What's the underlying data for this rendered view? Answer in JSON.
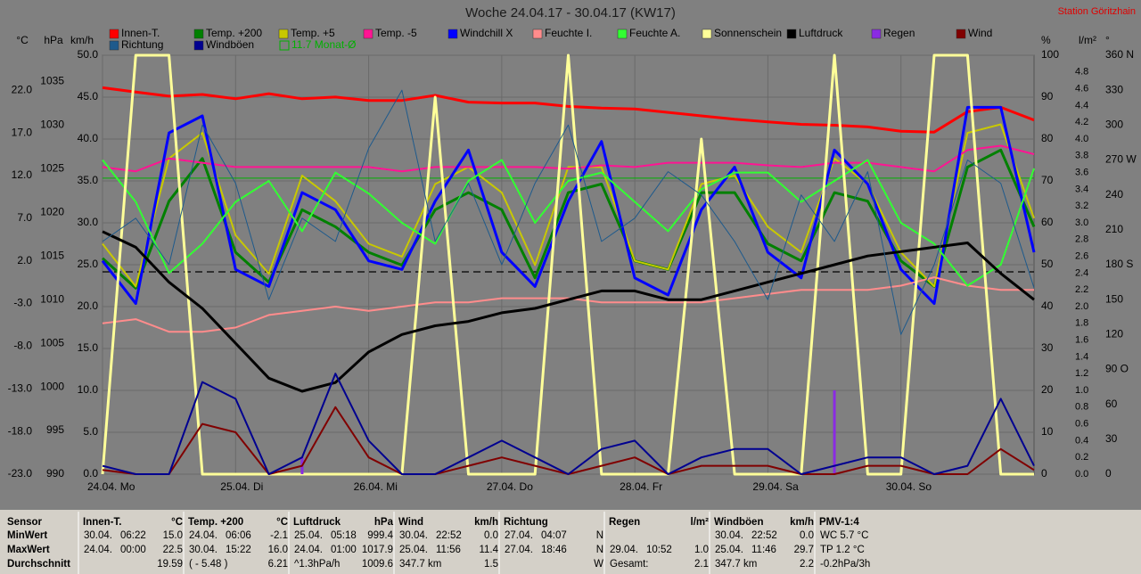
{
  "chart_data": {
    "type": "line",
    "title": "Woche 24.04.17 - 30.04.17 (KW17)",
    "station": "Station Göritzhain",
    "xlim": [
      0,
      168
    ],
    "xticks": [
      {
        "value": 0,
        "label": "24.04. Mo"
      },
      {
        "value": 24,
        "label": "25.04. Di"
      },
      {
        "value": 48,
        "label": "26.04. Mi"
      },
      {
        "value": 72,
        "label": "27.04. Do"
      },
      {
        "value": 96,
        "label": "28.04. Fr"
      },
      {
        "value": 120,
        "label": "29.04. Sa"
      },
      {
        "value": 144,
        "label": "30.04. So"
      }
    ],
    "x": [
      0,
      6,
      12,
      18,
      24,
      30,
      36,
      42,
      48,
      54,
      60,
      66,
      72,
      78,
      84,
      90,
      96,
      102,
      108,
      114,
      120,
      126,
      132,
      138,
      144,
      150,
      156,
      162,
      168
    ],
    "grid": true,
    "monthly_avg": 11.7,
    "monthly_avg_label": "11.7 Monat-Ø",
    "monthly_avg_color": "#00b000",
    "axes": {
      "c": {
        "label": "°C",
        "lim": [
          -23,
          26.1
        ],
        "ticks": [
          {
            "value": -23,
            "label": "-23.0"
          },
          {
            "value": -18,
            "label": "-18.0"
          },
          {
            "value": -13,
            "label": "-13.0"
          },
          {
            "value": -8,
            "label": "-8.0"
          },
          {
            "value": -3,
            "label": "-3.0"
          },
          {
            "value": 2,
            "label": "2.0"
          },
          {
            "value": 7,
            "label": "7.0"
          },
          {
            "value": 12,
            "label": "12.0"
          },
          {
            "value": 17,
            "label": "17.0"
          },
          {
            "value": 22,
            "label": "22.0"
          }
        ]
      },
      "hpa": {
        "label": "hPa",
        "lim": [
          990,
          1038
        ],
        "ticks": [
          990,
          995,
          1000,
          1005,
          1010,
          1015,
          1020,
          1025,
          1030,
          1035
        ]
      },
      "kmh": {
        "label": "km/h",
        "lim": [
          0,
          50
        ],
        "ticks": [
          {
            "value": 0,
            "label": "0.0"
          },
          {
            "value": 5,
            "label": "5.0"
          },
          {
            "value": 10,
            "label": "10.0"
          },
          {
            "value": 15,
            "label": "15.0"
          },
          {
            "value": 20,
            "label": "20.0"
          },
          {
            "value": 25,
            "label": "25.0"
          },
          {
            "value": 30,
            "label": "30.0"
          },
          {
            "value": 35,
            "label": "35.0"
          },
          {
            "value": 40,
            "label": "40.0"
          },
          {
            "value": 45,
            "label": "45.0"
          },
          {
            "value": 50,
            "label": "50.0"
          }
        ]
      },
      "pct": {
        "label": "%",
        "lim": [
          0,
          100
        ],
        "ticks": [
          0,
          10,
          20,
          30,
          40,
          50,
          60,
          70,
          80,
          90,
          100
        ]
      },
      "rain": {
        "label": "l/m²",
        "lim": [
          0,
          5
        ],
        "ticks": [
          {
            "value": 0,
            "label": "0.0"
          },
          0.2,
          0.4,
          0.6,
          0.8,
          {
            "value": 1,
            "label": "1.0"
          },
          1.2,
          1.4,
          1.6,
          1.8,
          {
            "value": 2,
            "label": "2.0"
          },
          2.2,
          2.4,
          2.6,
          2.8,
          {
            "value": 3,
            "label": "3.0"
          },
          3.2,
          3.4,
          3.6,
          3.8,
          {
            "value": 4,
            "label": "4.0"
          },
          4.2,
          4.4,
          4.6,
          4.8
        ]
      },
      "deg": {
        "label": "°",
        "lim": [
          0,
          360
        ],
        "ticks": [
          0,
          30,
          60,
          {
            "value": 90,
            "label": "90 O"
          },
          120,
          150,
          {
            "value": 180,
            "label": "180 S"
          },
          210,
          240,
          {
            "value": 270,
            "label": "270 W"
          },
          300,
          330,
          {
            "value": 360,
            "label": "360 N"
          }
        ]
      }
    },
    "series": [
      {
        "name": "Innen-T.",
        "color": "#ff0000",
        "axis": "c",
        "width": 3,
        "values": [
          22.3,
          21.8,
          21.3,
          21.5,
          21.0,
          21.6,
          21.0,
          21.2,
          20.8,
          20.8,
          21.4,
          20.6,
          20.5,
          20.5,
          20.1,
          19.9,
          19.8,
          19.4,
          19.0,
          18.6,
          18.3,
          18.0,
          17.9,
          17.7,
          17.2,
          17.1,
          19.5,
          20.0,
          18.5
        ]
      },
      {
        "name": "Temp. +200",
        "color": "#008000",
        "axis": "c",
        "width": 3,
        "values": [
          2.3,
          -1.2,
          9,
          14,
          3,
          -0.5,
          8,
          6,
          3,
          1.5,
          8,
          10,
          8,
          0,
          10,
          11,
          2,
          1,
          10,
          10,
          4,
          2,
          10,
          9,
          2,
          -1,
          13,
          15,
          6
        ]
      },
      {
        "name": "Temp. +5",
        "color": "#c8c800",
        "axis": "c",
        "width": 2,
        "values": [
          4,
          -1,
          14,
          17,
          5,
          0.5,
          12,
          9,
          4,
          2.5,
          11,
          13,
          10,
          1.5,
          13,
          13,
          2,
          1,
          11,
          12,
          6,
          3,
          14,
          11,
          3,
          -1,
          17,
          18,
          7
        ]
      },
      {
        "name": "Temp. -5",
        "color": "#ff1493",
        "axis": "c",
        "width": 2,
        "values": [
          13,
          12.5,
          14,
          13.5,
          13,
          13,
          13,
          13,
          13,
          12.5,
          13,
          13,
          13,
          13,
          12.8,
          13.2,
          13,
          13.5,
          13.5,
          13.5,
          13.2,
          13,
          13.5,
          13.5,
          13,
          12.5,
          15,
          15.5,
          14.5
        ]
      },
      {
        "name": "Windchill X",
        "color": "#0000ff",
        "axis": "c",
        "width": 3,
        "values": [
          2,
          -3,
          17,
          19,
          1,
          -1,
          10,
          8,
          2,
          1,
          9,
          15,
          3,
          -1,
          9,
          16,
          0,
          -2,
          8,
          13,
          3,
          0,
          15,
          11,
          1,
          -3,
          20,
          20,
          3
        ]
      },
      {
        "name": "Feuchte I.",
        "color": "#ff8c8c",
        "axis": "pct",
        "width": 2,
        "values": [
          36,
          37,
          34,
          34,
          35,
          38,
          39,
          40,
          39,
          40,
          41,
          41,
          42,
          42,
          42,
          41,
          41,
          41,
          41,
          42,
          43,
          44,
          44,
          44,
          45,
          47,
          45,
          44,
          44
        ]
      },
      {
        "name": "Feuchte A.",
        "color": "#32ff32",
        "axis": "pct",
        "width": 2,
        "values": [
          75,
          65,
          48,
          55,
          65,
          70,
          58,
          72,
          67,
          60,
          55,
          70,
          75,
          60,
          70,
          72,
          65,
          58,
          68,
          72,
          72,
          65,
          70,
          75,
          60,
          55,
          45,
          50,
          73
        ]
      },
      {
        "name": "Sonnenschein",
        "color": "#ffff99",
        "axis": "pct",
        "width": 3,
        "values": [
          0,
          100,
          100,
          0,
          0,
          0,
          0,
          0,
          0,
          0,
          90,
          0,
          0,
          0,
          100,
          0,
          0,
          0,
          80,
          0,
          0,
          0,
          100,
          0,
          0,
          100,
          100,
          0,
          0
        ]
      },
      {
        "name": "Luftdruck",
        "color": "#000000",
        "axis": "hpa",
        "width": 3,
        "values": [
          1017.8,
          1016,
          1012,
          1009,
          1005,
          1001,
          999.5,
          1000.5,
          1004,
          1006,
          1007,
          1007.5,
          1008.5,
          1009,
          1010,
          1011,
          1011,
          1010,
          1010,
          1011,
          1012,
          1013,
          1014,
          1015,
          1015.5,
          1016,
          1016.5,
          1013,
          1010
        ]
      },
      {
        "name": "Regen",
        "color": "#8a2be2",
        "axis": "rain",
        "style": "bar",
        "values": [
          0,
          0,
          0,
          0,
          0,
          0,
          0.2,
          0,
          0,
          0,
          0,
          0,
          0,
          0,
          0,
          0,
          0,
          0,
          0,
          0,
          0,
          0,
          1.0,
          0,
          0,
          0,
          0,
          0,
          0
        ]
      },
      {
        "name": "Wind",
        "color": "#800000",
        "axis": "kmh",
        "width": 2,
        "values": [
          0.5,
          0,
          0,
          6,
          5,
          0,
          1,
          8,
          2,
          0,
          0,
          1,
          2,
          1,
          0,
          1,
          2,
          0,
          1,
          1,
          1,
          0,
          0,
          1,
          1,
          0,
          0,
          3,
          0.5
        ]
      },
      {
        "name": "Richtung",
        "color": "#1e5a8c",
        "axis": "deg",
        "width": 1,
        "values": [
          200,
          220,
          180,
          300,
          250,
          150,
          220,
          200,
          280,
          330,
          200,
          250,
          180,
          250,
          300,
          200,
          220,
          260,
          240,
          200,
          150,
          240,
          200,
          260,
          120,
          180,
          270,
          250,
          160
        ]
      },
      {
        "name": "Windböen",
        "color": "#000090",
        "axis": "kmh",
        "width": 2,
        "values": [
          1,
          0,
          0,
          11,
          9,
          0,
          2,
          12,
          4,
          0,
          0,
          2,
          4,
          2,
          0,
          3,
          4,
          0,
          2,
          3,
          3,
          0,
          1,
          2,
          2,
          0,
          1,
          9,
          1
        ]
      }
    ]
  },
  "table": {
    "row_labels": [
      "Sensor",
      "MinWert",
      "MaxWert",
      "Durchschnitt"
    ],
    "groups": [
      {
        "name": "Innen-T.",
        "unit": "°C",
        "min": {
          "date": "30.04.",
          "time": "06:22",
          "value": "15.0"
        },
        "max": {
          "date": "24.04.",
          "time": "00:00",
          "value": "22.5"
        },
        "avg": {
          "value": "19.59"
        }
      },
      {
        "name": "Temp. +200",
        "unit": "°C",
        "min": {
          "date": "24.04.",
          "time": "06:06",
          "value": "-2.1"
        },
        "max": {
          "date": "30.04.",
          "time": "15:22",
          "value": "16.0"
        },
        "avg": {
          "note": "( - 5.48 )",
          "value": "6.21"
        }
      },
      {
        "name": "Luftdruck",
        "unit": "hPa",
        "min": {
          "date": "25.04.",
          "time": "05:18",
          "value": "999.4"
        },
        "max": {
          "date": "24.04.",
          "time": "01:00",
          "value": "1017.9"
        },
        "avg": {
          "note": "^1.3hPa/h",
          "value": "1009.6"
        }
      },
      {
        "name": "Wind",
        "unit": "km/h",
        "min": {
          "date": "30.04.",
          "time": "22:52",
          "value": "0.0"
        },
        "max": {
          "date": "25.04.",
          "time": "11:56",
          "value": "11.4"
        },
        "avg": {
          "note": "347.7 km",
          "value": "1.5"
        }
      },
      {
        "name": "Richtung",
        "min": {
          "date": "27.04.",
          "time": "04:07",
          "value": "N"
        },
        "max": {
          "date": "27.04.",
          "time": "18:46",
          "value": "N"
        },
        "avg": {
          "value": "W"
        }
      },
      {
        "name": "Regen",
        "unit": "l/m²",
        "max": {
          "date": "29.04.",
          "time": "10:52",
          "value": "1.0"
        },
        "avg": {
          "note": "Gesamt:",
          "value": "2.1"
        }
      },
      {
        "name": "Windböen",
        "unit": "km/h",
        "min": {
          "date": "30.04.",
          "time": "22:52",
          "value": "0.0"
        },
        "max": {
          "date": "25.04.",
          "time": "11:46",
          "value": "29.7"
        },
        "avg": {
          "note": "347.7 km",
          "value": "2.2"
        }
      },
      {
        "name": "PMV-1:4",
        "min": {
          "note": "WC 5.7 °C"
        },
        "max": {
          "note": "TP 1.2 °C"
        },
        "avg": {
          "note": "-0.2hPa/3h"
        }
      }
    ]
  }
}
